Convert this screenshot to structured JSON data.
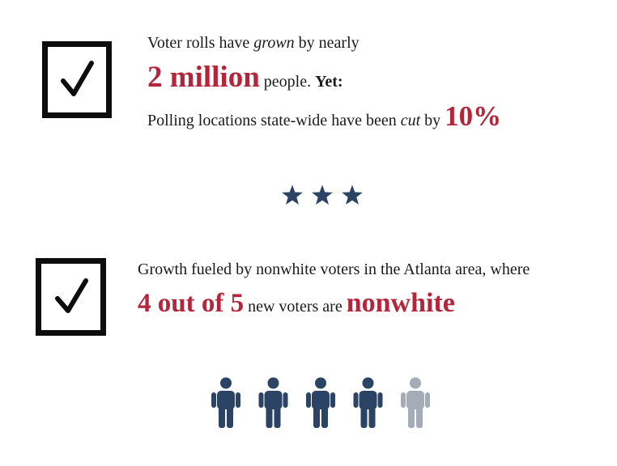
{
  "colors": {
    "accent_red": "#b5243b",
    "navy": "#2b4365",
    "gray": "#a3acb7",
    "black": "#0d0d0d"
  },
  "icons": {
    "checkbox": "check-square-icon",
    "star": "star-icon",
    "person": "person-icon"
  },
  "fact1": {
    "line1_pre": "Voter rolls have ",
    "line1_em": "grown",
    "line1_post": " by nearly",
    "highlight_number": "2 million",
    "line2_post": " people. ",
    "line2_bold": "Yet:",
    "line3_pre": "Polling locations state-wide have been ",
    "line3_em": "cut",
    "line3_post": " by ",
    "highlight_percent": "10%"
  },
  "divider": {
    "star_count": 3
  },
  "fact2": {
    "line1": "Growth fueled by nonwhite voters in the Atlanta area, where",
    "highlight_ratio": "4 out of 5",
    "line2_mid": " new voters are ",
    "highlight_word": "nonwhite"
  },
  "people_graphic": {
    "filled": 4,
    "total": 5
  }
}
